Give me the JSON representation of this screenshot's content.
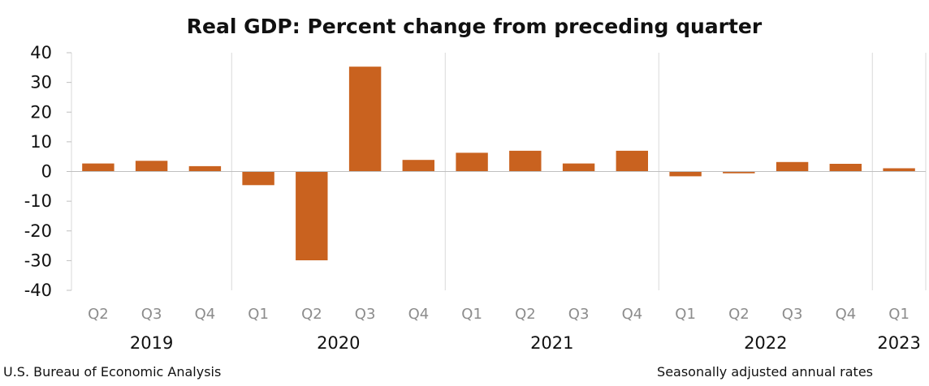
{
  "chart_data": {
    "type": "bar",
    "title": "Real GDP:  Percent change from preceding quarter",
    "categories": [
      "Q2",
      "Q3",
      "Q4",
      "Q1",
      "Q2",
      "Q3",
      "Q4",
      "Q1",
      "Q2",
      "Q3",
      "Q4",
      "Q1",
      "Q2",
      "Q3",
      "Q4",
      "Q1"
    ],
    "years": [
      {
        "label": "2019",
        "start": 0,
        "end": 2
      },
      {
        "label": "2020",
        "start": 3,
        "end": 6
      },
      {
        "label": "2021",
        "start": 7,
        "end": 10
      },
      {
        "label": "2022",
        "start": 11,
        "end": 14
      },
      {
        "label": "2023",
        "start": 15,
        "end": 15
      }
    ],
    "values": [
      2.7,
      3.6,
      1.8,
      -4.6,
      -29.9,
      35.3,
      3.9,
      6.3,
      7.0,
      2.7,
      7.0,
      -1.6,
      -0.6,
      3.2,
      2.6,
      1.1
    ],
    "ylim": [
      -40,
      40
    ],
    "yticks": [
      40,
      30,
      20,
      10,
      0,
      -10,
      -20,
      -30,
      -40
    ],
    "bar_color": "#c9621f",
    "grid": "vertical year separators",
    "xlabel": "",
    "ylabel": ""
  },
  "footer": {
    "source": "U.S. Bureau of Economic Analysis",
    "note": "Seasonally adjusted annual rates"
  }
}
